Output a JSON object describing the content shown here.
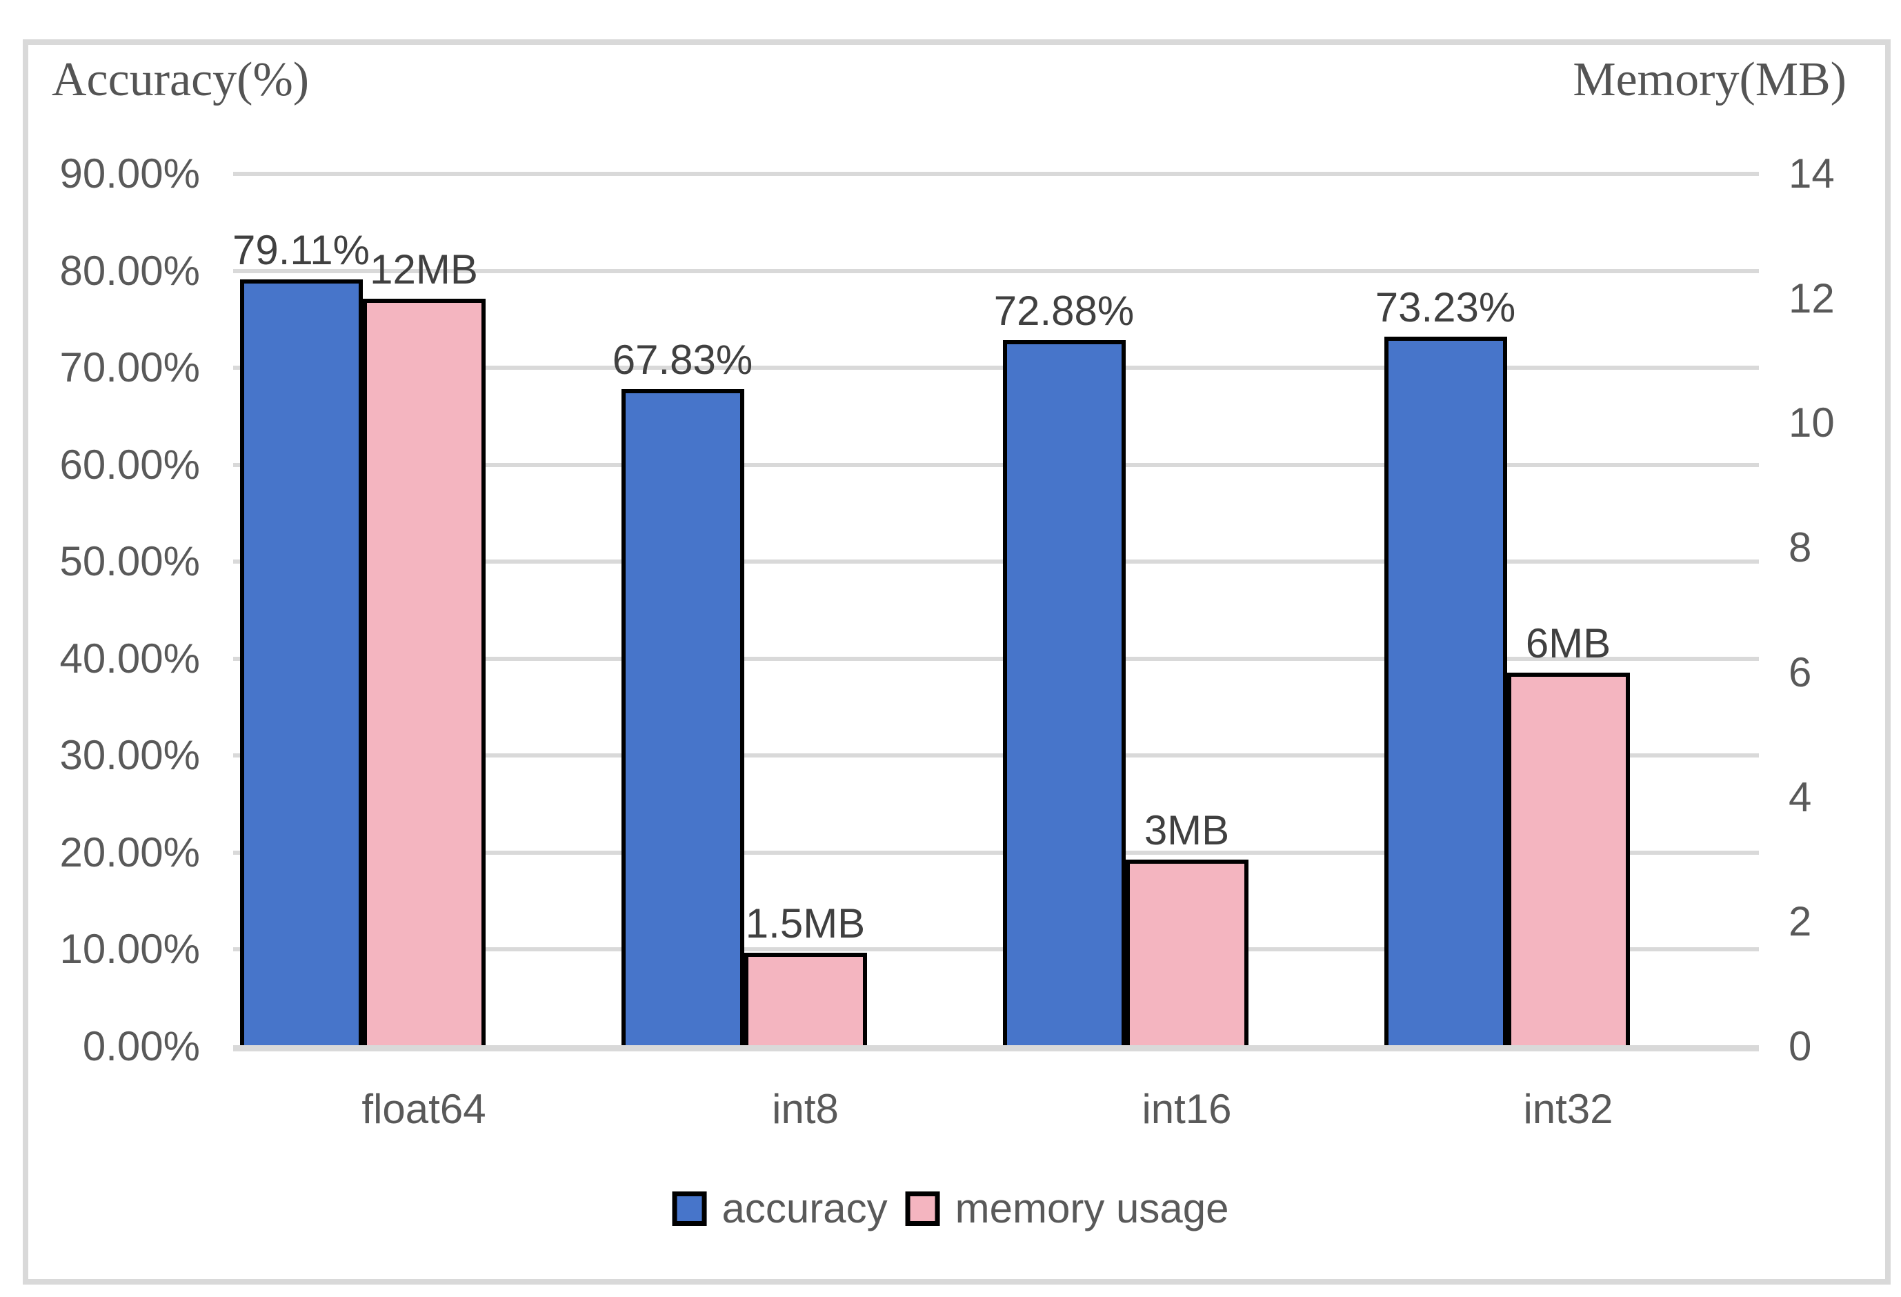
{
  "chart_data": {
    "type": "bar",
    "dual_axis": true,
    "categories": [
      "float64",
      "int8",
      "int16",
      "int32"
    ],
    "series": [
      {
        "name": "accuracy",
        "axis": "left",
        "color": "#4775CA",
        "values": [
          79.11,
          67.83,
          72.88,
          73.23
        ],
        "labels": [
          "79.11%",
          "67.83%",
          "72.88%",
          "73.23%"
        ]
      },
      {
        "name": "memory usage",
        "axis": "right",
        "color": "#F4B5C0",
        "values": [
          12,
          1.5,
          3,
          6
        ],
        "labels": [
          "12MB",
          "1.5MB",
          "3MB",
          "6MB"
        ]
      }
    ],
    "left_axis": {
      "title": "Accuracy(%)",
      "min": 0,
      "max": 90,
      "tick_step": 10,
      "tick_labels": [
        "0.00%",
        "10.00%",
        "20.00%",
        "30.00%",
        "40.00%",
        "50.00%",
        "60.00%",
        "70.00%",
        "80.00%",
        "90.00%"
      ]
    },
    "right_axis": {
      "title": "Memory(MB)",
      "min": 0,
      "max": 14,
      "tick_step": 2,
      "tick_labels": [
        "0",
        "2",
        "4",
        "6",
        "8",
        "10",
        "12",
        "14"
      ]
    },
    "legend": [
      "accuracy",
      "memory usage"
    ],
    "legend_position": "bottom",
    "grid": true,
    "colors": {
      "accuracy_bar": "#4775CA",
      "memory_bar": "#F4B5C0",
      "bar_border": "#000000",
      "gridline": "#D9D9D9",
      "frame_border": "#D9D9D9",
      "tick_text": "#595959",
      "category_text": "#595959",
      "data_label_text": "#404040",
      "axis_title_text": "#545454",
      "legend_text": "#595959",
      "background": "#FFFFFF"
    }
  }
}
